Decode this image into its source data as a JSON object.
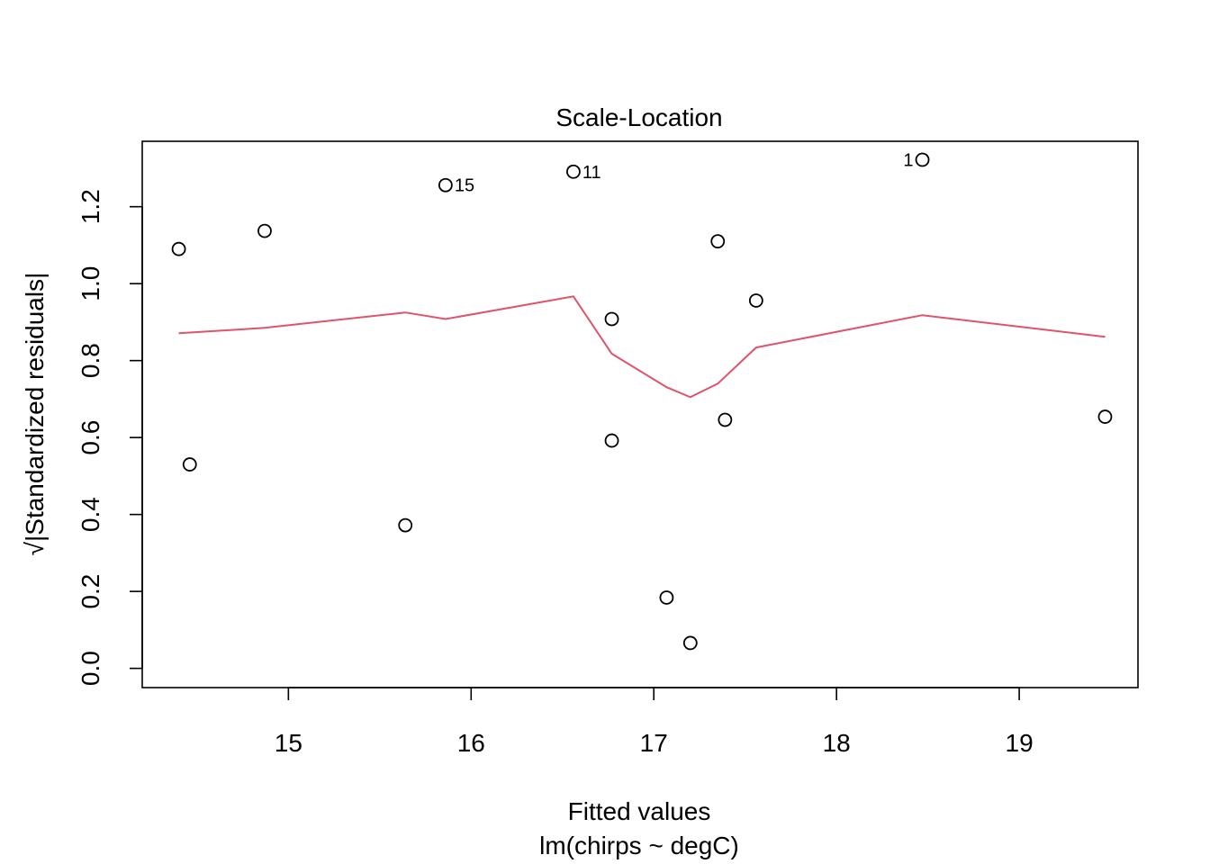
{
  "chart_data": {
    "type": "scatter",
    "title": "Scale-Location",
    "xlabel": "Fitted values",
    "xsublabel": "lm(chirps ~ degC)",
    "ylabel": "√|Standardized residuals|",
    "xlim": [
      14.2,
      19.65
    ],
    "ylim": [
      -0.05,
      1.37
    ],
    "xticks": [
      15,
      16,
      17,
      18,
      19
    ],
    "yticks": [
      0.0,
      0.2,
      0.4,
      0.6,
      0.8,
      1.0,
      1.2
    ],
    "xtick_labels": [
      "15",
      "16",
      "17",
      "18",
      "19"
    ],
    "ytick_labels": [
      "0.0",
      "0.2",
      "0.4",
      "0.6",
      "0.8",
      "1.0",
      "1.2"
    ],
    "grid": false,
    "points": [
      {
        "x": 14.4,
        "y": 1.09,
        "label": ""
      },
      {
        "x": 14.46,
        "y": 0.53,
        "label": ""
      },
      {
        "x": 14.87,
        "y": 1.137,
        "label": ""
      },
      {
        "x": 15.64,
        "y": 0.372,
        "label": ""
      },
      {
        "x": 15.86,
        "y": 1.256,
        "label": "15"
      },
      {
        "x": 16.56,
        "y": 1.291,
        "label": "11"
      },
      {
        "x": 16.77,
        "y": 0.908,
        "label": ""
      },
      {
        "x": 16.77,
        "y": 0.592,
        "label": ""
      },
      {
        "x": 17.07,
        "y": 0.184,
        "label": ""
      },
      {
        "x": 17.2,
        "y": 0.066,
        "label": ""
      },
      {
        "x": 17.35,
        "y": 1.11,
        "label": ""
      },
      {
        "x": 17.39,
        "y": 0.646,
        "label": ""
      },
      {
        "x": 17.56,
        "y": 0.956,
        "label": ""
      },
      {
        "x": 18.47,
        "y": 1.322,
        "label": "1"
      },
      {
        "x": 19.47,
        "y": 0.654,
        "label": ""
      }
    ],
    "smooth_line": {
      "color": "#DF536B",
      "x": [
        14.4,
        14.87,
        15.64,
        15.86,
        16.56,
        16.77,
        17.07,
        17.2,
        17.35,
        17.56,
        18.47,
        19.47
      ],
      "y": [
        0.871,
        0.885,
        0.925,
        0.908,
        0.967,
        0.818,
        0.731,
        0.705,
        0.74,
        0.834,
        0.918,
        0.862
      ]
    }
  }
}
